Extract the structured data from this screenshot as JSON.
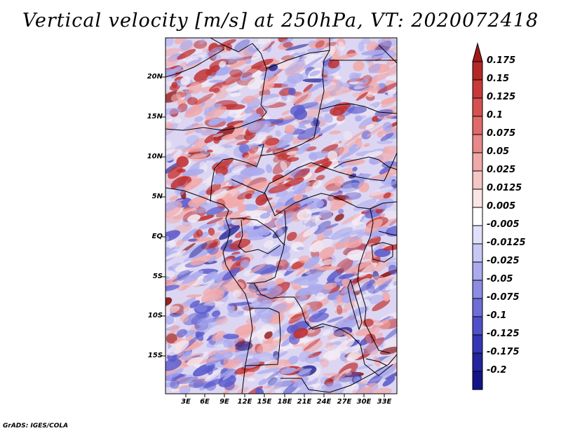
{
  "title": "Vertical velocity [m/s] at 250hPa, VT: 2020072418",
  "credit": "GrADS: IGES/COLA",
  "map": {
    "lat_labels": [
      "20N",
      "15N",
      "10N",
      "5N",
      "EQ",
      "5S",
      "10S",
      "15S"
    ],
    "lon_labels": [
      "3E",
      "6E",
      "9E",
      "12E",
      "15E",
      "18E",
      "21E",
      "24E",
      "27E",
      "30E",
      "33E"
    ]
  },
  "colorbar": {
    "labels": [
      "0.175",
      "0.15",
      "0.125",
      "0.1",
      "0.075",
      "0.05",
      "0.025",
      "0.0125",
      "0.005",
      "-0.005",
      "-0.0125",
      "-0.025",
      "-0.05",
      "-0.075",
      "-0.1",
      "-0.125",
      "-0.175",
      "-0.2"
    ],
    "colors": [
      "#a01818",
      "#b42828",
      "#c83a3a",
      "#d65050",
      "#e06a6a",
      "#e88888",
      "#f0a8a8",
      "#f6c6c6",
      "#fbe4e4",
      "#ffffff",
      "#e0e0fb",
      "#c8c8f4",
      "#aaaaec",
      "#8c8ce2",
      "#6e6ed6",
      "#5050c8",
      "#3636b4",
      "#24249c",
      "#14148a",
      "#0c0c74"
    ]
  },
  "field_colors": {
    "strong_up": "#c03030",
    "up": "#f2a8a8",
    "neutral": "#f4ecf4",
    "down": "#aaaaee",
    "strong_down": "#5a5acc",
    "borders": "#000000"
  }
}
